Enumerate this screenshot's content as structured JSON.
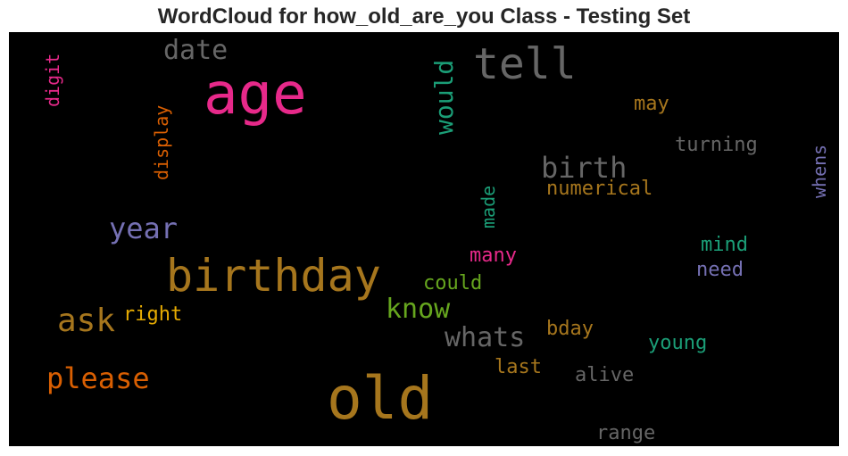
{
  "title": "WordCloud for how_old_are_you Class - Testing Set",
  "chart_data": {
    "type": "wordcloud",
    "background": "#000000",
    "colormap": "Dark2",
    "words": [
      {
        "text": "age",
        "color": "#e7298a"
      },
      {
        "text": "old",
        "color": "#a6761d"
      },
      {
        "text": "birthday",
        "color": "#a6761d"
      },
      {
        "text": "tell",
        "color": "#666666"
      },
      {
        "text": "ask",
        "color": "#a6761d"
      },
      {
        "text": "please",
        "color": "#d95f02"
      },
      {
        "text": "year",
        "color": "#7570b3"
      },
      {
        "text": "birth",
        "color": "#666666"
      },
      {
        "text": "know",
        "color": "#66a61e"
      },
      {
        "text": "whats",
        "color": "#666666"
      },
      {
        "text": "date",
        "color": "#666666"
      },
      {
        "text": "would",
        "color": "#1b9e77"
      },
      {
        "text": "digit",
        "color": "#e7298a"
      },
      {
        "text": "display",
        "color": "#d95f02"
      },
      {
        "text": "made",
        "color": "#1b9e77"
      },
      {
        "text": "whens",
        "color": "#7570b3"
      },
      {
        "text": "may",
        "color": "#a6761d"
      },
      {
        "text": "turning",
        "color": "#666666"
      },
      {
        "text": "numerical",
        "color": "#a6761d"
      },
      {
        "text": "many",
        "color": "#e7298a"
      },
      {
        "text": "could",
        "color": "#66a61e"
      },
      {
        "text": "right",
        "color": "#e6ab02"
      },
      {
        "text": "mind",
        "color": "#1b9e77"
      },
      {
        "text": "need",
        "color": "#7570b3"
      },
      {
        "text": "bday",
        "color": "#a6761d"
      },
      {
        "text": "young",
        "color": "#1b9e77"
      },
      {
        "text": "last",
        "color": "#a6761d"
      },
      {
        "text": "alive",
        "color": "#666666"
      },
      {
        "text": "range",
        "color": "#666666"
      }
    ]
  }
}
